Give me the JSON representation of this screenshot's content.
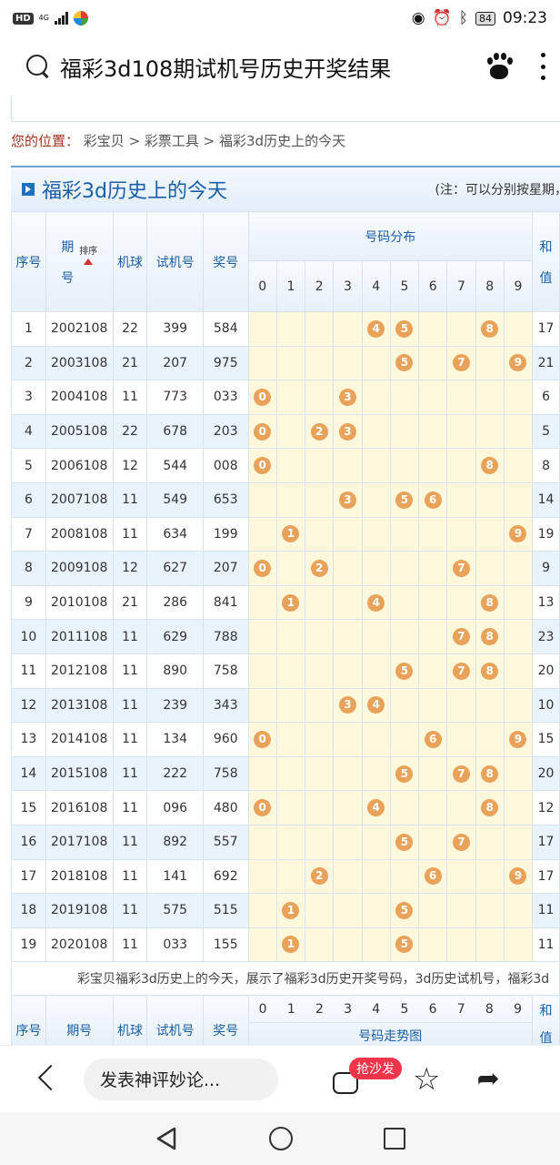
{
  "status": {
    "hd": "HD",
    "network": "4G",
    "battery": "84",
    "time": "09:23"
  },
  "search": {
    "title": "福彩3d108期试机号历史开奖结果"
  },
  "breadcrumb": {
    "label": "您的位置：",
    "path": "彩宝贝 > 彩票工具 > 福彩3d历史上的今天"
  },
  "panel": {
    "title": "福彩3d历史上的今天",
    "note": "(注：可以分别按星期，月份"
  },
  "table": {
    "headers": {
      "index": "序号",
      "issue_top": "期",
      "issue_bottom": "号",
      "sort": "排序",
      "machine": "机球",
      "trial": "试机号",
      "prize": "奖号",
      "distribution": "号码分布",
      "sum_top": "和",
      "sum_bottom": "值",
      "digits": [
        "0",
        "1",
        "2",
        "3",
        "4",
        "5",
        "6",
        "7",
        "8",
        "9"
      ]
    },
    "rows": [
      {
        "idx": "1",
        "issue": "2002108",
        "ball": "22",
        "trial": "399",
        "prize": "584",
        "sum": "17"
      },
      {
        "idx": "2",
        "issue": "2003108",
        "ball": "21",
        "trial": "207",
        "prize": "975",
        "sum": "21"
      },
      {
        "idx": "3",
        "issue": "2004108",
        "ball": "11",
        "trial": "773",
        "prize": "033",
        "sum": "6"
      },
      {
        "idx": "4",
        "issue": "2005108",
        "ball": "22",
        "trial": "678",
        "prize": "203",
        "sum": "5"
      },
      {
        "idx": "5",
        "issue": "2006108",
        "ball": "12",
        "trial": "544",
        "prize": "008",
        "sum": "8"
      },
      {
        "idx": "6",
        "issue": "2007108",
        "ball": "11",
        "trial": "549",
        "prize": "653",
        "sum": "14"
      },
      {
        "idx": "7",
        "issue": "2008108",
        "ball": "11",
        "trial": "634",
        "prize": "199",
        "sum": "19"
      },
      {
        "idx": "8",
        "issue": "2009108",
        "ball": "12",
        "trial": "627",
        "prize": "207",
        "sum": "9"
      },
      {
        "idx": "9",
        "issue": "2010108",
        "ball": "21",
        "trial": "286",
        "prize": "841",
        "sum": "13"
      },
      {
        "idx": "10",
        "issue": "2011108",
        "ball": "11",
        "trial": "629",
        "prize": "788",
        "sum": "23"
      },
      {
        "idx": "11",
        "issue": "2012108",
        "ball": "11",
        "trial": "890",
        "prize": "758",
        "sum": "20"
      },
      {
        "idx": "12",
        "issue": "2013108",
        "ball": "11",
        "trial": "239",
        "prize": "343",
        "sum": "10"
      },
      {
        "idx": "13",
        "issue": "2014108",
        "ball": "11",
        "trial": "134",
        "prize": "960",
        "sum": "15"
      },
      {
        "idx": "14",
        "issue": "2015108",
        "ball": "11",
        "trial": "222",
        "prize": "758",
        "sum": "20"
      },
      {
        "idx": "15",
        "issue": "2016108",
        "ball": "11",
        "trial": "096",
        "prize": "480",
        "sum": "12"
      },
      {
        "idx": "16",
        "issue": "2017108",
        "ball": "11",
        "trial": "892",
        "prize": "557",
        "sum": "17"
      },
      {
        "idx": "17",
        "issue": "2018108",
        "ball": "11",
        "trial": "141",
        "prize": "692",
        "sum": "17"
      },
      {
        "idx": "18",
        "issue": "2019108",
        "ball": "11",
        "trial": "575",
        "prize": "515",
        "sum": "11"
      },
      {
        "idx": "19",
        "issue": "2020108",
        "ball": "11",
        "trial": "033",
        "prize": "155",
        "sum": "11"
      }
    ],
    "note": "彩宝贝福彩3d历史上的今天，展示了福彩3d历史开奖号码，3d历史试机号，福彩3d",
    "footer": {
      "index": "序号",
      "issue": "期号",
      "machine": "机球",
      "trial": "试机号",
      "prize": "奖号",
      "sum": "和",
      "sum_bottom": "值",
      "distribution": "号码走势图"
    }
  },
  "bottom": {
    "comment_placeholder": "发表神评妙论...",
    "badge": "抢沙发"
  },
  "colors": {
    "accent": "#1a5fa8",
    "ball": "#e8a25a",
    "badge": "#f0344a"
  }
}
